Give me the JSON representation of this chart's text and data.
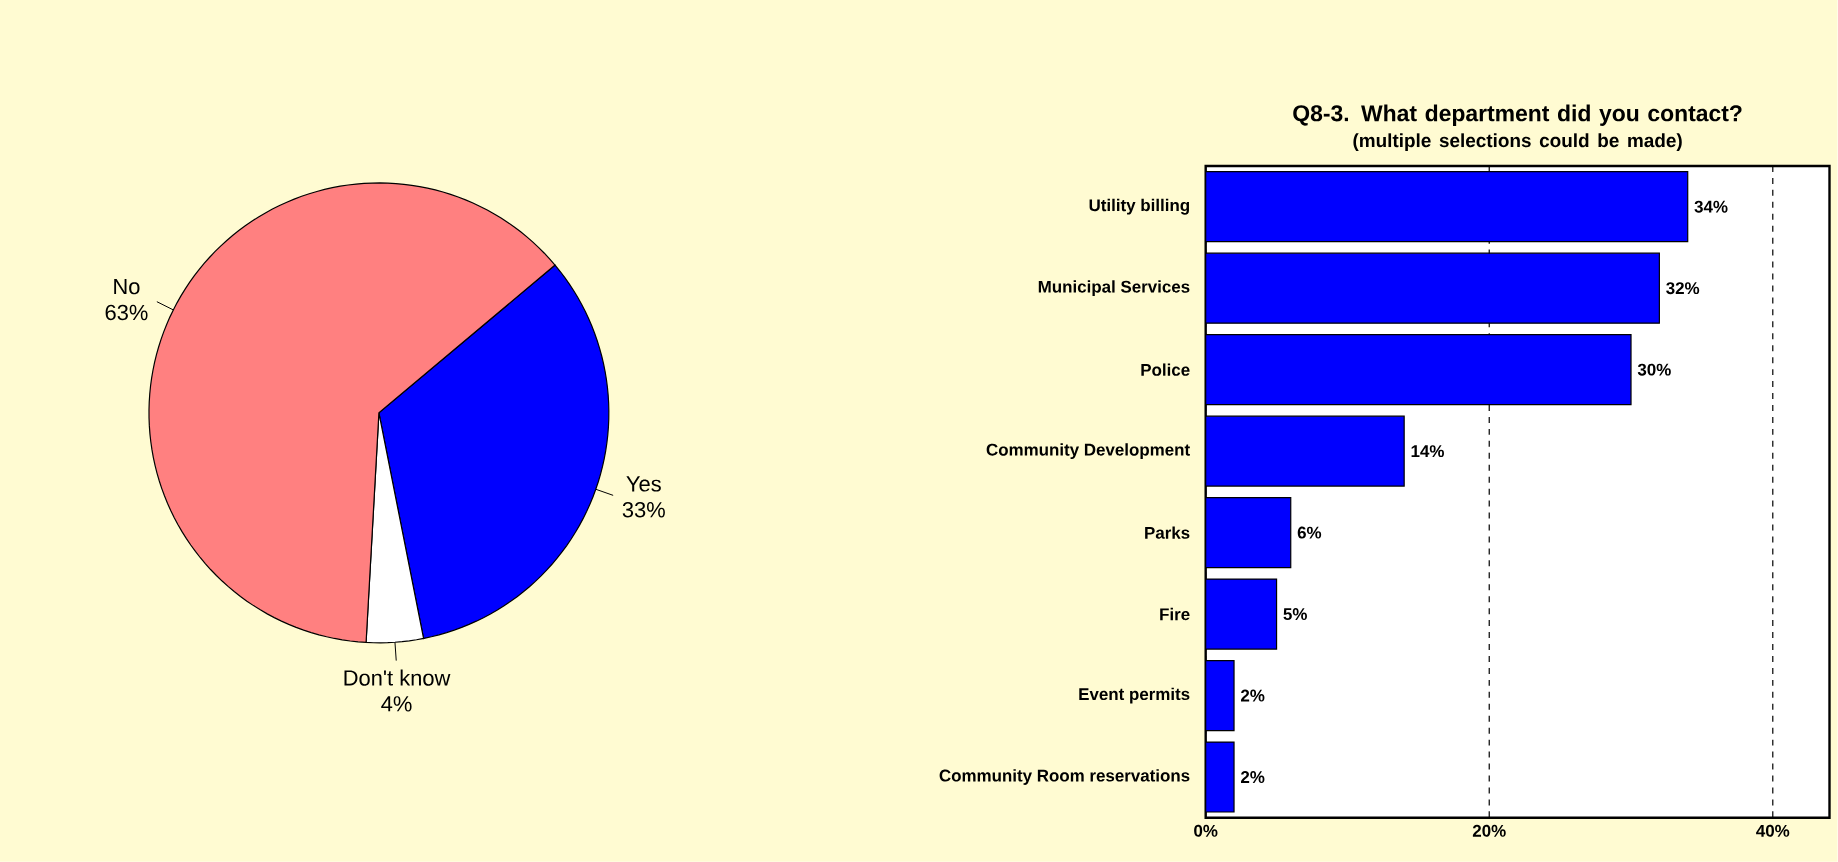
{
  "chart_data": [
    {
      "type": "pie",
      "categories": [
        "Yes",
        "Don't know",
        "No"
      ],
      "values": [
        33,
        4,
        63
      ],
      "value_labels": [
        "33%",
        "4%",
        "63%"
      ],
      "colors": [
        "#0000ff",
        "#ffffff",
        "#ff8080"
      ]
    },
    {
      "type": "bar",
      "orientation": "horizontal",
      "title": "Q8-3. What department did you contact?",
      "subtitle": "(multiple selections could be made)",
      "categories": [
        "Utility billing",
        "Municipal Services",
        "Police",
        "Community Development",
        "Parks",
        "Fire",
        "Event permits",
        "Community Room reservations"
      ],
      "values": [
        34,
        32,
        30,
        14,
        6,
        5,
        2,
        2
      ],
      "value_labels": [
        "34%",
        "32%",
        "30%",
        "14%",
        "6%",
        "5%",
        "2%",
        "2%"
      ],
      "color": "#0000ff",
      "xlim": [
        0,
        44
      ],
      "xticks": [
        {
          "value": 0,
          "label": "0%"
        },
        {
          "value": 20,
          "label": "20%"
        },
        {
          "value": 40,
          "label": "40%"
        }
      ],
      "grid": "x"
    }
  ]
}
